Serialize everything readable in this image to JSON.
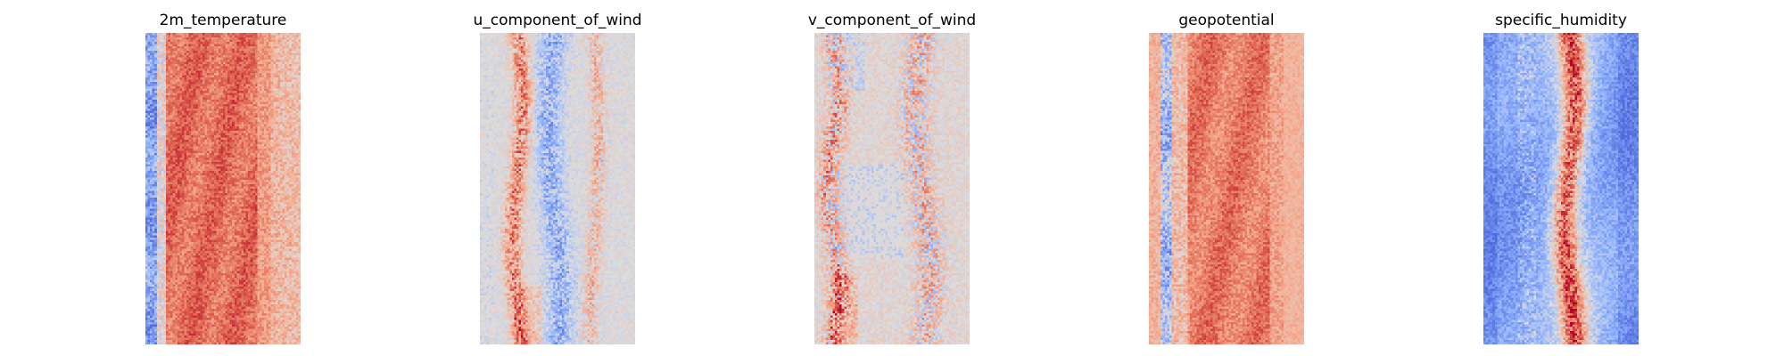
{
  "chart_data": [
    {
      "type": "heatmap",
      "title": "2m_temperature",
      "colormap": "coolwarm",
      "axis": "off",
      "description_profile": "warm band centered; cool left edge",
      "pattern": "temperature"
    },
    {
      "type": "heatmap",
      "title": "u_component_of_wind",
      "colormap": "coolwarm",
      "axis": "off",
      "pattern": "u_wind"
    },
    {
      "type": "heatmap",
      "title": "v_component_of_wind",
      "colormap": "coolwarm",
      "axis": "off",
      "pattern": "v_wind"
    },
    {
      "type": "heatmap",
      "title": "geopotential",
      "colormap": "coolwarm",
      "axis": "off",
      "pattern": "geopotential"
    },
    {
      "type": "heatmap",
      "title": "specific_humidity",
      "colormap": "coolwarm",
      "axis": "off",
      "pattern": "humidity"
    }
  ]
}
